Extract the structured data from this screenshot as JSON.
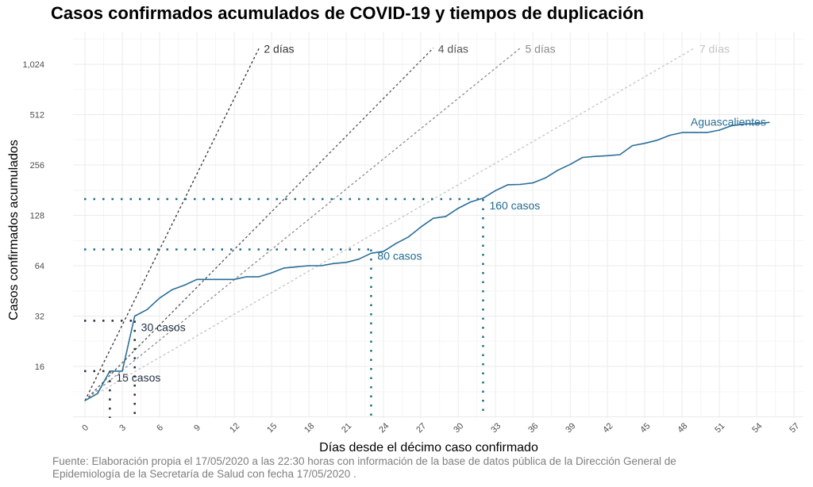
{
  "chart_data": {
    "type": "line",
    "title": "Casos confirmados acumulados de COVID-19 y tiempos de duplicación",
    "xlabel": "Días desde el décimo caso confirmado",
    "ylabel": "Casos confirmados acumulados",
    "caption_lines": [
      "Fuente: Elaboración propia el 17/05/2020 a las 22:30 horas con información de la base de datos  pública de la Dirección General de",
      "Epidemiología de la Secretaría de Salud con fecha 17/05/2020 ."
    ],
    "y_scale": "log2",
    "ylim": [
      7.5,
      1400
    ],
    "xlim": [
      -1,
      58
    ],
    "grid": true,
    "x_ticks": [
      0,
      3,
      6,
      9,
      12,
      15,
      18,
      21,
      24,
      27,
      30,
      33,
      36,
      39,
      42,
      45,
      48,
      51,
      54,
      57
    ],
    "y_ticks": [
      {
        "value": 16,
        "label": "16"
      },
      {
        "value": 32,
        "label": "32"
      },
      {
        "value": 64,
        "label": "64"
      },
      {
        "value": 128,
        "label": "128"
      },
      {
        "value": 256,
        "label": "256"
      },
      {
        "value": 512,
        "label": "512"
      },
      {
        "value": 1024,
        "label": "1,024"
      }
    ],
    "series": [
      {
        "name": "Aguascalientes",
        "color": "#2a6f97",
        "x": [
          0,
          1,
          2,
          3,
          4,
          5,
          6,
          7,
          8,
          9,
          10,
          11,
          12,
          13,
          14,
          15,
          16,
          17,
          18,
          19,
          20,
          21,
          22,
          23,
          24,
          25,
          26,
          27,
          28,
          29,
          30,
          31,
          32,
          33,
          34,
          35,
          36,
          37,
          38,
          39,
          40,
          41,
          42,
          43,
          44,
          45,
          46,
          47,
          48,
          49,
          50,
          51,
          52,
          53,
          54,
          55
        ],
        "values": [
          10,
          11,
          15,
          15,
          32,
          35,
          41,
          46,
          49,
          53,
          53,
          53,
          53,
          55,
          55,
          58,
          62,
          63,
          64,
          64,
          66,
          67,
          70,
          76,
          78,
          87,
          95,
          109,
          123,
          126,
          141,
          154,
          162,
          180,
          195,
          196,
          200,
          214,
          238,
          258,
          284,
          288,
          291,
          295,
          334,
          345,
          360,
          385,
          400,
          400,
          400,
          414,
          440,
          450,
          452,
          460
        ]
      }
    ],
    "doubling_lines": [
      {
        "label": "2 días",
        "days": 2,
        "start": 10,
        "end_day": 14,
        "color": "#333333"
      },
      {
        "label": "4 días",
        "days": 4,
        "start": 10,
        "end_day": 28,
        "color": "#555555"
      },
      {
        "label": "5 días",
        "days": 5,
        "start": 10,
        "end_day": 35,
        "color": "#8c8c8c"
      },
      {
        "label": "7 días",
        "days": 7,
        "start": 10,
        "end_day": 49,
        "color": "#c4c4c4"
      }
    ],
    "reference_markers": [
      {
        "label": "15 casos",
        "value": 15,
        "day": 2,
        "color": "#1f2f3f"
      },
      {
        "label": "30 casos",
        "value": 30,
        "day": 4,
        "color": "#1f2f3f"
      },
      {
        "label": "80 casos",
        "value": 80,
        "day": 23,
        "color": "#1f6c8c"
      },
      {
        "label": "160 casos",
        "value": 160,
        "day": 32,
        "color": "#1f6c8c"
      }
    ]
  }
}
